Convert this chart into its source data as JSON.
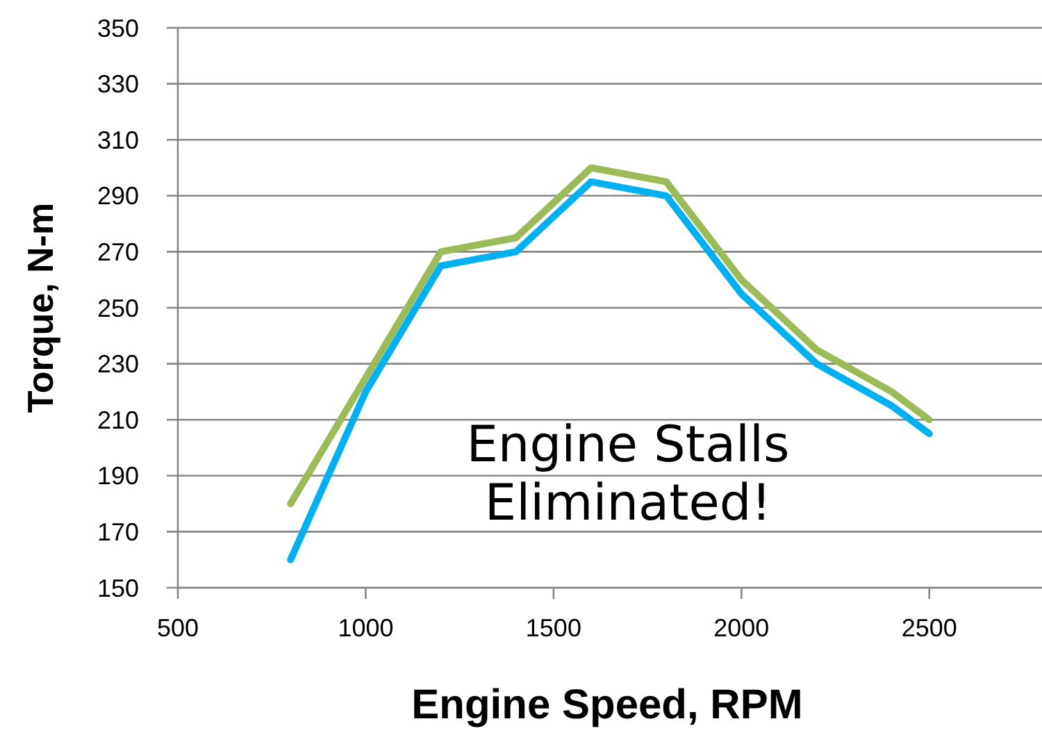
{
  "chart_data": {
    "type": "line",
    "xlabel": "Engine Speed, RPM",
    "ylabel": "Torque, N-m",
    "annotations": [
      "Engine Stalls\nEliminated!"
    ],
    "x": [
      800,
      1000,
      1200,
      1400,
      1600,
      1800,
      2000,
      2200,
      2400,
      2500
    ],
    "series": [
      {
        "color": "#9bbb59",
        "values": [
          180,
          225,
          270,
          275,
          300,
          295,
          260,
          235,
          220,
          210
        ]
      },
      {
        "color": "#00b0f0",
        "values": [
          160,
          220,
          265,
          270,
          295,
          290,
          255,
          230,
          215,
          205
        ]
      }
    ],
    "xlim": [
      500,
      2800
    ],
    "xticks": [
      500,
      1000,
      1500,
      2000,
      2500
    ],
    "ylim": [
      150,
      350
    ],
    "yticks": [
      150,
      170,
      190,
      210,
      230,
      250,
      270,
      290,
      310,
      330,
      350
    ],
    "grid": "y",
    "marker": "none",
    "line_style": "solid"
  }
}
